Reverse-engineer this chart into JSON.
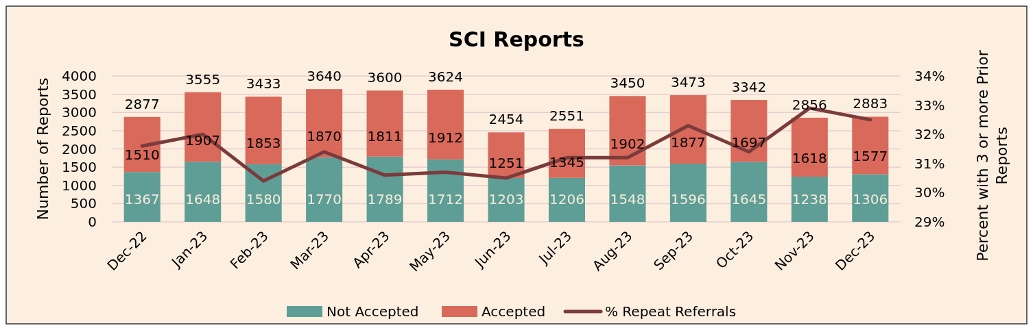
{
  "chart_data": {
    "type": "bar",
    "title": "SCI Reports",
    "ylabel": "Number of Reports",
    "y2label": "Percent with 3 or more Prior Reports",
    "categories": [
      "Dec-22",
      "Jan-23",
      "Feb-23",
      "Mar-23",
      "Apr-23",
      "May-23",
      "Jun-23",
      "Jul-23",
      "Aug-23",
      "Sep-23",
      "Oct-23",
      "Nov-23",
      "Dec-23"
    ],
    "stacked": true,
    "series": [
      {
        "name": "Not Accepted",
        "color": "#5f9e97",
        "values": [
          1367,
          1648,
          1580,
          1770,
          1789,
          1712,
          1203,
          1206,
          1548,
          1596,
          1645,
          1238,
          1306
        ],
        "value_labels": [
          "1367",
          "1648",
          "1580",
          "1770",
          "1789",
          "1712",
          "1203",
          "1206",
          "1548",
          "1596",
          "1645",
          "1238",
          "1306"
        ]
      },
      {
        "name": "Accepted",
        "color": "#d9695a",
        "values": [
          1510,
          1907,
          1853,
          1870,
          1811,
          1912,
          1251,
          1345,
          1902,
          1877,
          1697,
          1618,
          1577
        ],
        "value_labels": [
          "1510",
          "1907",
          "1853",
          "1870",
          "1811",
          "1912",
          "1251",
          "1345",
          "1902",
          "1877",
          "1697",
          "1618",
          "1577"
        ]
      },
      {
        "name": "% Repeat Referrals",
        "type": "line",
        "axis": "y2",
        "color": "#7b3b3b",
        "values": [
          31.6,
          32.0,
          30.4,
          31.4,
          30.6,
          30.7,
          30.5,
          31.2,
          31.2,
          32.3,
          31.4,
          32.9,
          32.5
        ]
      }
    ],
    "totals": [
      "2877",
      "3555",
      "3433",
      "3640",
      "3600",
      "3624",
      "2454",
      "2551",
      "3450",
      "3473",
      "3342",
      "2856",
      "2883"
    ],
    "ylim": [
      0,
      4000
    ],
    "yticks": [
      0,
      500,
      1000,
      1500,
      2000,
      2500,
      3000,
      3500,
      4000
    ],
    "y2lim": [
      29,
      34
    ],
    "y2ticks": [
      {
        "value": 29,
        "label": "29%"
      },
      {
        "value": 30,
        "label": "30%"
      },
      {
        "value": 31,
        "label": "31%"
      },
      {
        "value": 32,
        "label": "32%"
      },
      {
        "value": 33,
        "label": "33%"
      },
      {
        "value": 34,
        "label": "34%"
      }
    ],
    "grid": "y",
    "legend": "bottom"
  }
}
